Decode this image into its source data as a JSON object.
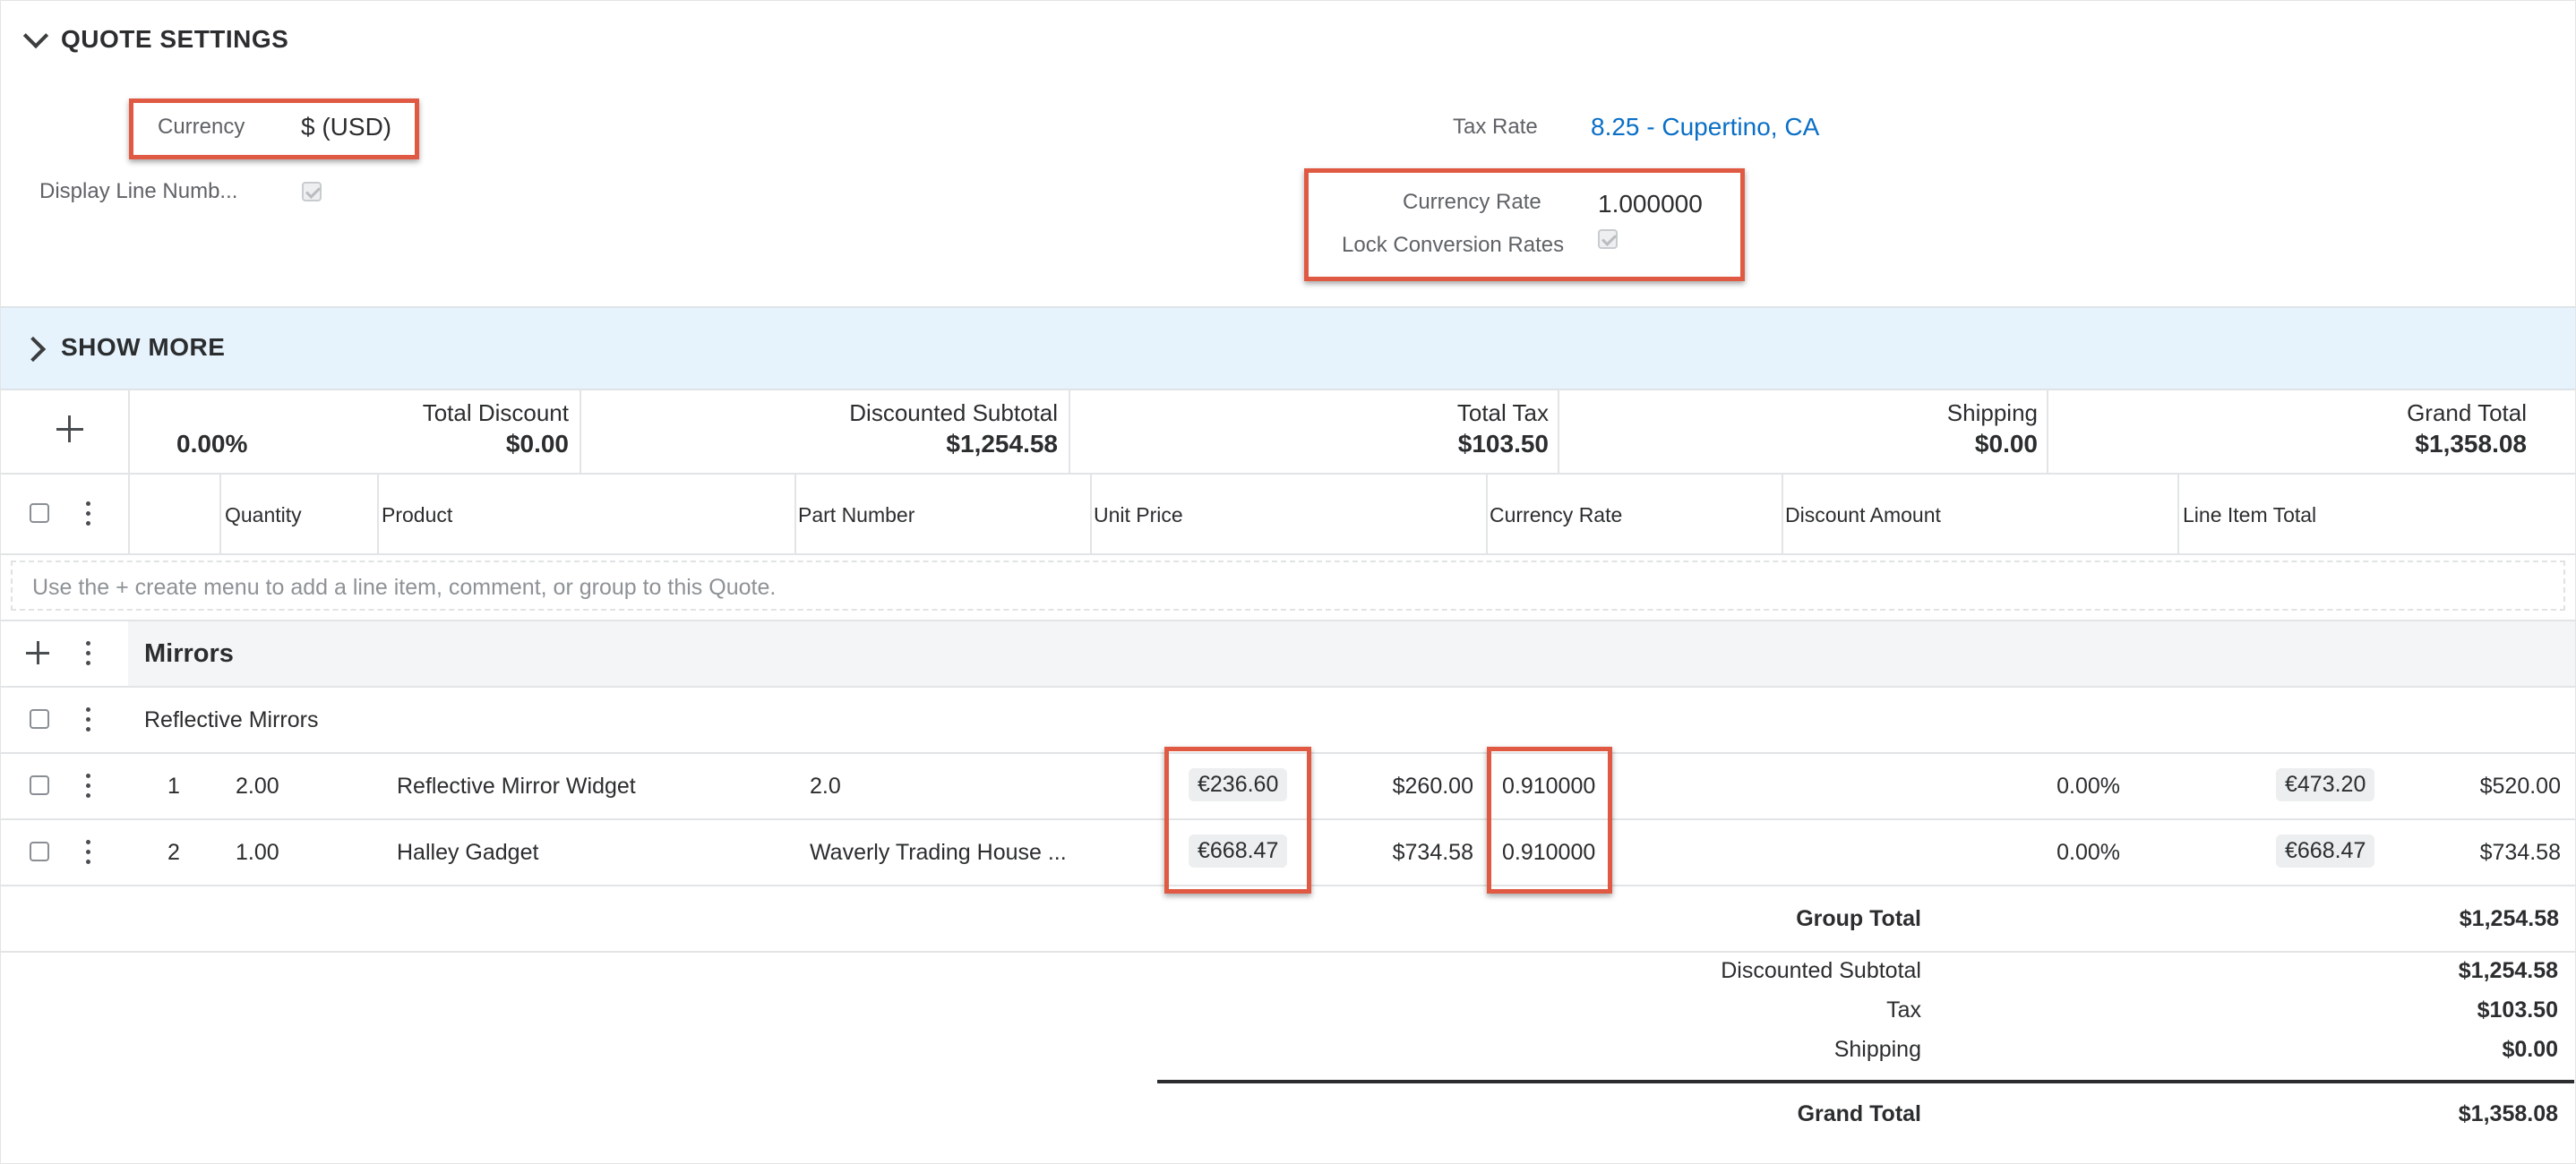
{
  "settings": {
    "title": "QUOTE SETTINGS",
    "currency_label": "Currency",
    "currency_value": "$ (USD)",
    "display_line_label": "Display Line Numb...",
    "tax_rate_label": "Tax Rate",
    "tax_rate_value": "8.25 - Cupertino, CA",
    "currency_rate_label": "Currency Rate",
    "currency_rate_value": "1.000000",
    "lock_rates_label": "Lock Conversion Rates"
  },
  "show_more": {
    "title": "SHOW MORE"
  },
  "totals": {
    "discount_pct": "0.00%",
    "total_discount_label": "Total Discount",
    "total_discount_value": "$0.00",
    "discounted_subtotal_label": "Discounted Subtotal",
    "discounted_subtotal_value": "$1,254.58",
    "total_tax_label": "Total Tax",
    "total_tax_value": "$103.50",
    "shipping_label": "Shipping",
    "shipping_value": "$0.00",
    "grand_total_label": "Grand Total",
    "grand_total_value": "$1,358.08"
  },
  "columns": {
    "quantity": "Quantity",
    "product": "Product",
    "part_number": "Part Number",
    "unit_price": "Unit Price",
    "currency_rate": "Currency Rate",
    "discount_amount": "Discount Amount",
    "line_item_total": "Line Item Total"
  },
  "hint": "Use the + create menu to add a line item, comment, or group to this Quote.",
  "group": {
    "name": "Mirrors",
    "comment": "Reflective Mirrors",
    "rows": [
      {
        "num": "1",
        "qty": "2.00",
        "product": "Reflective Mirror Widget",
        "part": "2.0",
        "unit_eur": "€236.60",
        "unit_usd": "$260.00",
        "rate": "0.910000",
        "disc": "0.00%",
        "total_eur": "€473.20",
        "total_usd": "$520.00"
      },
      {
        "num": "2",
        "qty": "1.00",
        "product": "Halley Gadget",
        "part": "Waverly Trading House ...",
        "unit_eur": "€668.47",
        "unit_usd": "$734.58",
        "rate": "0.910000",
        "disc": "0.00%",
        "total_eur": "€668.47",
        "total_usd": "$734.58"
      }
    ],
    "group_total_label": "Group Total",
    "group_total_value": "$1,254.58"
  },
  "summary": {
    "discounted_subtotal_label": "Discounted Subtotal",
    "discounted_subtotal_value": "$1,254.58",
    "tax_label": "Tax",
    "tax_value": "$103.50",
    "shipping_label": "Shipping",
    "shipping_value": "$0.00",
    "grand_total_label": "Grand Total",
    "grand_total_value": "$1,358.08"
  },
  "colors": {
    "accent": "#0b6fc6",
    "highlight": "#e05a43",
    "show_more_bg": "#e6f3fd"
  },
  "icons": [
    "chevron-down-icon",
    "chevron-right-icon",
    "plus-icon",
    "kebab-icon",
    "checkbox"
  ]
}
